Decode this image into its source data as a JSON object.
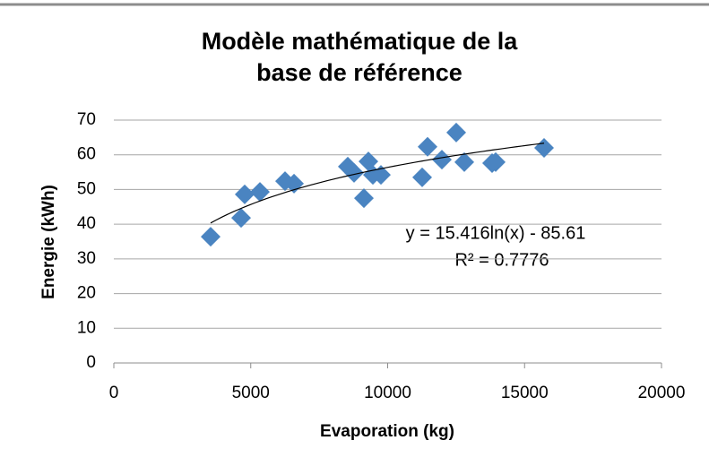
{
  "chart_data": {
    "type": "scatter",
    "title": [
      "Modèle mathématique  de la",
      "base de référence"
    ],
    "x_label": "Evaporation  (kg)",
    "y_label": "Energie (kWh)",
    "x": [
      3535,
      4648,
      4779,
      5336,
      6252,
      6580,
      8543,
      8772,
      9133,
      9296,
      9460,
      9755,
      11260,
      11457,
      11980,
      12504,
      12799,
      13813,
      13944,
      15712
    ],
    "values": [
      36.4,
      41.8,
      48.6,
      49.3,
      52.4,
      51.7,
      56.6,
      54.8,
      47.5,
      58.1,
      54.2,
      54.2,
      53.5,
      62.3,
      58.6,
      66.4,
      57.9,
      57.6,
      57.9,
      62.0
    ],
    "color": "#4a84c1",
    "xlim": [
      0,
      20000
    ],
    "xticks": [
      0,
      5000,
      10000,
      15000,
      20000
    ],
    "ylim": [
      0,
      70
    ],
    "yticks": [
      0,
      10,
      20,
      30,
      40,
      50,
      60,
      70
    ],
    "grid": true,
    "trendline": {
      "kind": "log",
      "coefficients": [
        15.416,
        -85.61
      ],
      "equation": "y = 15.416ln(x) - 85.61",
      "r_squared_label": "R² = 0.7776"
    }
  }
}
